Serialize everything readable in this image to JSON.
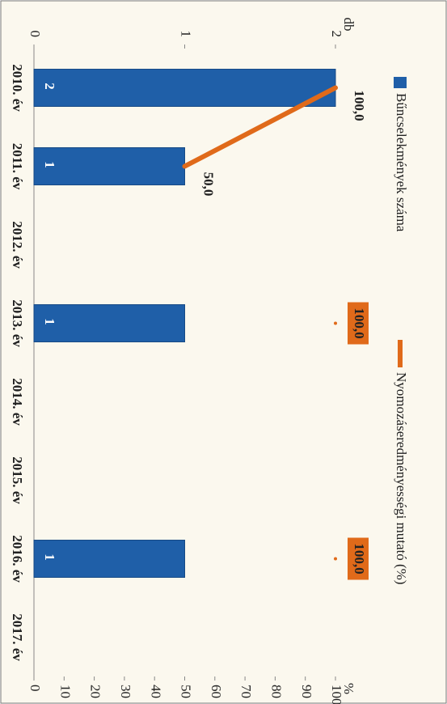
{
  "chart_data": {
    "type": "bar-line",
    "categories": [
      "2010. év",
      "2011. év",
      "2012. év",
      "2013. év",
      "2014. év",
      "2015. év",
      "2016. év",
      "2017. év"
    ],
    "series": [
      {
        "name": "Bűncselekmények száma",
        "type": "bar",
        "color": "#1f5fa8",
        "values": [
          2,
          1,
          null,
          1,
          null,
          null,
          1,
          null
        ]
      },
      {
        "name": "Nyomozáseredményességi mutató (%)",
        "type": "line",
        "axis": "y2",
        "color": "#e06a1a",
        "values": [
          100,
          50,
          null,
          100,
          null,
          null,
          100,
          null
        ],
        "value_labels": [
          "100,0",
          "50,0",
          null,
          "100,0",
          null,
          null,
          "100,0",
          null
        ]
      }
    ],
    "ylabel": "db",
    "ylim": [
      0,
      2
    ],
    "yticks": [
      0,
      1,
      2
    ],
    "y2label": "%",
    "y2lim": [
      0,
      100
    ],
    "y2ticks": [
      0,
      10,
      20,
      30,
      40,
      50,
      60,
      70,
      80,
      90,
      100
    ],
    "legend": "top",
    "grid": false
  }
}
